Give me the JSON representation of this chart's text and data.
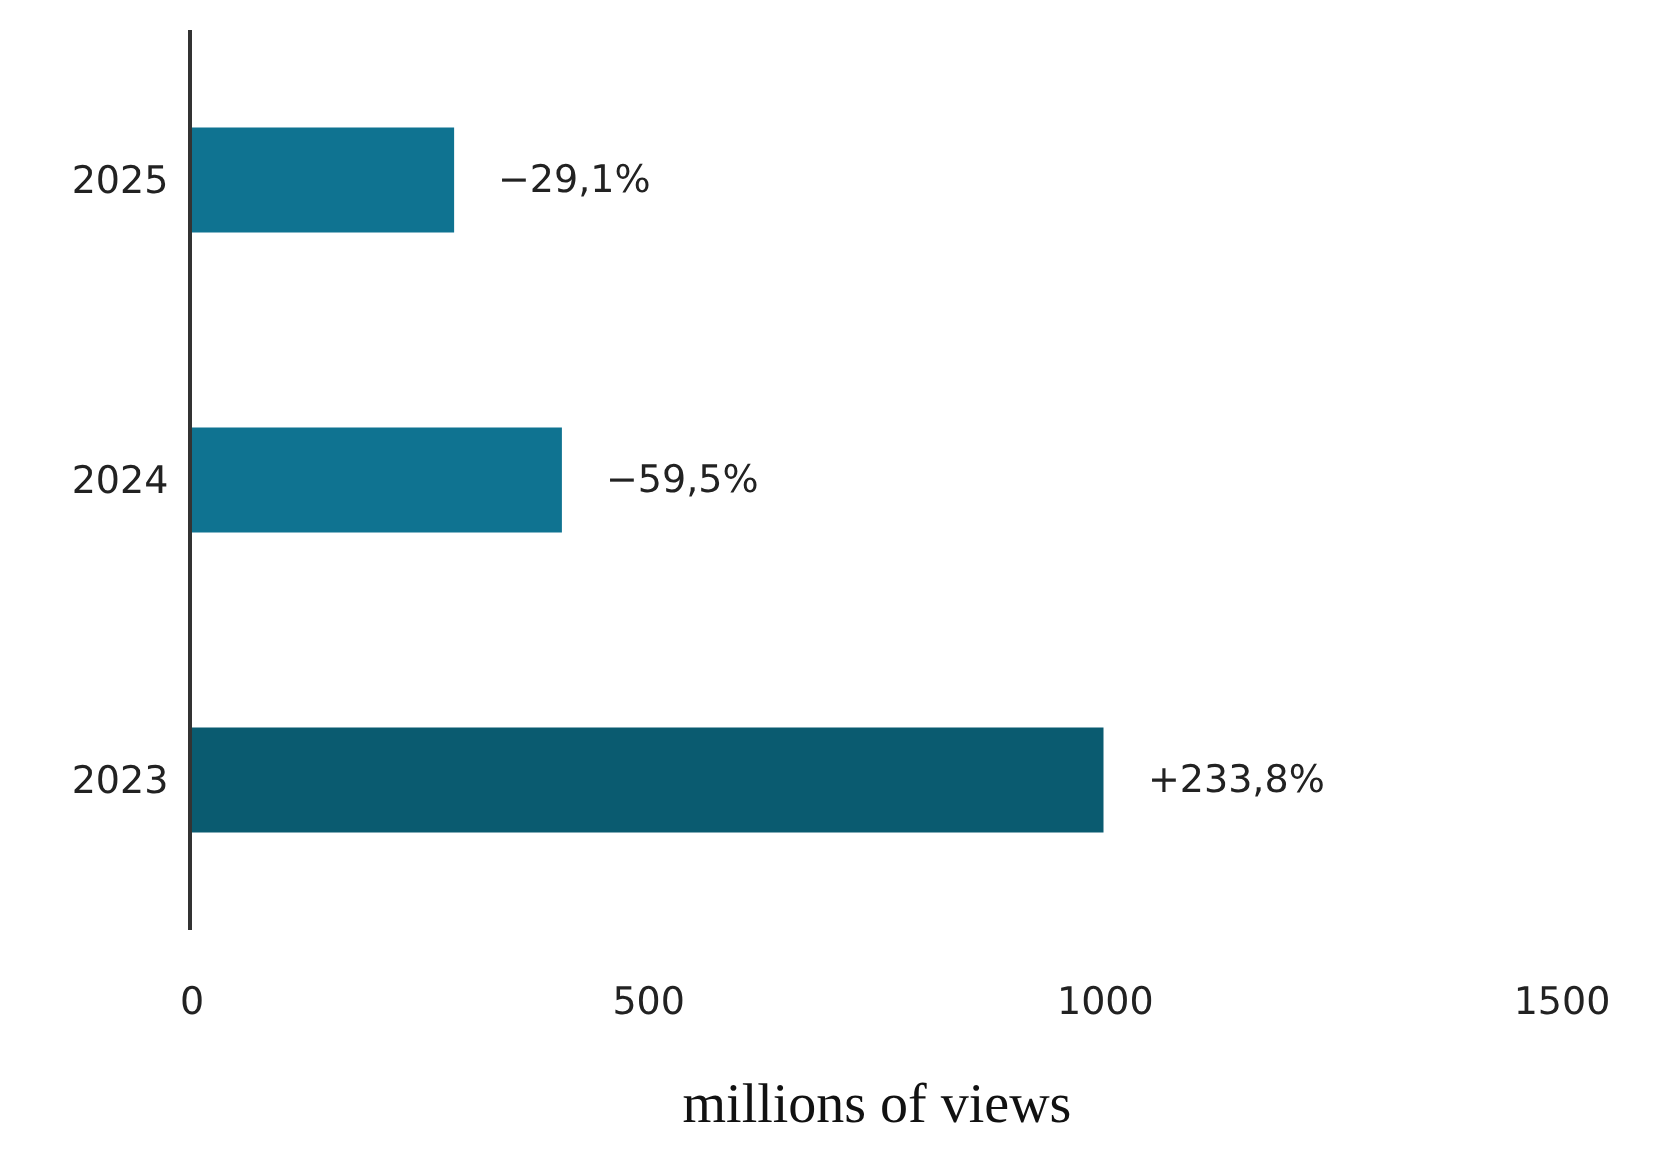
{
  "chart_data": {
    "type": "bar",
    "orientation": "horizontal",
    "xlabel": "millions of views",
    "categories": [
      "2025",
      "2024",
      "2023"
    ],
    "values": [
      287,
      405,
      998
    ],
    "colors": [
      "#0f7391",
      "#0f7391",
      "#0a5b70"
    ],
    "annotations": [
      {
        "text": "−29,1%",
        "x": 287,
        "y": "2025"
      },
      {
        "text": "−59,5%",
        "x": 405,
        "y": "2024"
      },
      {
        "text": "+233,8%",
        "x": 998,
        "y": "2023"
      }
    ],
    "xlim": [
      0,
      1500
    ],
    "xticks": [
      0,
      500,
      1000,
      1500
    ],
    "grid": false
  }
}
